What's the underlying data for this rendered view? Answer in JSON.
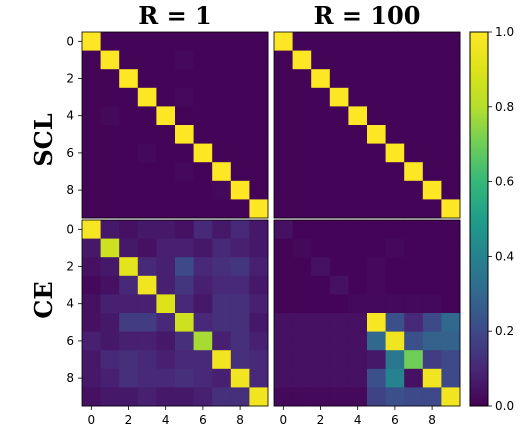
{
  "chart_data": {
    "type": "heatmap",
    "column_titles": [
      "R = 1",
      "R = 100"
    ],
    "row_titles": [
      "SCL",
      "CE"
    ],
    "axis_tick_labels": [
      "0",
      "2",
      "4",
      "6",
      "8"
    ],
    "colorbar": {
      "min": 0.0,
      "max": 1.0,
      "ticks": [
        0.0,
        0.2,
        0.4,
        0.6,
        0.8,
        1.0
      ],
      "tick_labels": [
        "0.0",
        "0.2",
        "0.4",
        "0.6",
        "0.8",
        "1.0"
      ],
      "colormap": "viridis"
    },
    "panels": [
      {
        "row": "SCL",
        "column": "R = 1",
        "matrix": [
          [
            1.0,
            0.01,
            0.01,
            0.01,
            0.01,
            0.01,
            0.01,
            0.01,
            0.01,
            0.01
          ],
          [
            0.01,
            1.0,
            0.01,
            0.01,
            0.01,
            0.02,
            0.01,
            0.01,
            0.01,
            0.01
          ],
          [
            0.01,
            0.01,
            1.0,
            0.01,
            0.01,
            0.01,
            0.01,
            0.01,
            0.01,
            0.01
          ],
          [
            0.01,
            0.01,
            0.01,
            1.0,
            0.01,
            0.02,
            0.01,
            0.01,
            0.01,
            0.01
          ],
          [
            0.01,
            0.02,
            0.01,
            0.01,
            1.0,
            0.01,
            0.01,
            0.01,
            0.01,
            0.01
          ],
          [
            0.01,
            0.01,
            0.01,
            0.01,
            0.01,
            1.0,
            0.01,
            0.01,
            0.01,
            0.01
          ],
          [
            0.01,
            0.01,
            0.01,
            0.02,
            0.01,
            0.01,
            1.0,
            0.01,
            0.01,
            0.01
          ],
          [
            0.01,
            0.01,
            0.01,
            0.01,
            0.01,
            0.02,
            0.01,
            1.0,
            0.01,
            0.01
          ],
          [
            0.01,
            0.01,
            0.01,
            0.01,
            0.01,
            0.01,
            0.01,
            0.02,
            1.0,
            0.01
          ],
          [
            0.01,
            0.01,
            0.01,
            0.01,
            0.01,
            0.01,
            0.01,
            0.01,
            0.01,
            1.0
          ]
        ]
      },
      {
        "row": "SCL",
        "column": "R = 100",
        "matrix": [
          [
            1.0,
            0.01,
            0.01,
            0.01,
            0.01,
            0.01,
            0.01,
            0.01,
            0.01,
            0.01
          ],
          [
            0.01,
            1.0,
            0.01,
            0.01,
            0.01,
            0.01,
            0.01,
            0.01,
            0.01,
            0.01
          ],
          [
            0.01,
            0.01,
            1.0,
            0.01,
            0.01,
            0.01,
            0.01,
            0.01,
            0.01,
            0.01
          ],
          [
            0.01,
            0.01,
            0.01,
            1.0,
            0.01,
            0.01,
            0.01,
            0.01,
            0.01,
            0.01
          ],
          [
            0.01,
            0.01,
            0.01,
            0.01,
            1.0,
            0.01,
            0.01,
            0.01,
            0.01,
            0.01
          ],
          [
            0.01,
            0.01,
            0.01,
            0.01,
            0.01,
            1.0,
            0.01,
            0.01,
            0.01,
            0.01
          ],
          [
            0.01,
            0.01,
            0.01,
            0.01,
            0.01,
            0.01,
            1.0,
            0.01,
            0.01,
            0.01
          ],
          [
            0.01,
            0.01,
            0.01,
            0.01,
            0.01,
            0.01,
            0.01,
            1.0,
            0.01,
            0.01
          ],
          [
            0.01,
            0.01,
            0.01,
            0.01,
            0.01,
            0.01,
            0.01,
            0.01,
            1.0,
            0.01
          ],
          [
            0.01,
            0.01,
            0.01,
            0.01,
            0.01,
            0.01,
            0.01,
            0.01,
            0.01,
            1.0
          ]
        ]
      },
      {
        "row": "CE",
        "column": "R = 1",
        "matrix": [
          [
            0.98,
            0.06,
            0.04,
            0.06,
            0.06,
            0.04,
            0.1,
            0.06,
            0.1,
            0.06
          ],
          [
            0.06,
            0.86,
            0.06,
            0.04,
            0.08,
            0.08,
            0.06,
            0.1,
            0.08,
            0.06
          ],
          [
            0.04,
            0.06,
            0.92,
            0.1,
            0.08,
            0.2,
            0.1,
            0.12,
            0.14,
            0.08
          ],
          [
            0.02,
            0.04,
            0.1,
            0.96,
            0.08,
            0.14,
            0.08,
            0.1,
            0.1,
            0.06
          ],
          [
            0.04,
            0.08,
            0.08,
            0.08,
            0.9,
            0.1,
            0.06,
            0.12,
            0.12,
            0.08
          ],
          [
            0.04,
            0.06,
            0.16,
            0.16,
            0.1,
            0.86,
            0.1,
            0.12,
            0.12,
            0.06
          ],
          [
            0.08,
            0.06,
            0.08,
            0.08,
            0.06,
            0.12,
            0.78,
            0.08,
            0.12,
            0.08
          ],
          [
            0.06,
            0.1,
            0.12,
            0.1,
            0.08,
            0.1,
            0.1,
            0.96,
            0.12,
            0.1
          ],
          [
            0.06,
            0.08,
            0.12,
            0.1,
            0.1,
            0.12,
            0.1,
            0.08,
            0.96,
            0.1
          ],
          [
            0.04,
            0.06,
            0.06,
            0.08,
            0.06,
            0.06,
            0.08,
            0.12,
            0.12,
            0.96
          ]
        ]
      },
      {
        "row": "CE",
        "column": "R = 100",
        "matrix": [
          [
            0.04,
            0.01,
            0.01,
            0.01,
            0.01,
            0.01,
            0.01,
            0.01,
            0.01,
            0.01
          ],
          [
            0.01,
            0.02,
            0.01,
            0.01,
            0.01,
            0.01,
            0.02,
            0.01,
            0.01,
            0.01
          ],
          [
            0.01,
            0.01,
            0.04,
            0.01,
            0.01,
            0.02,
            0.01,
            0.01,
            0.01,
            0.01
          ],
          [
            0.01,
            0.01,
            0.01,
            0.04,
            0.01,
            0.02,
            0.01,
            0.01,
            0.01,
            0.01
          ],
          [
            0.01,
            0.01,
            0.01,
            0.01,
            0.02,
            0.02,
            0.02,
            0.02,
            0.02,
            0.01
          ],
          [
            0.04,
            0.04,
            0.04,
            0.04,
            0.04,
            0.98,
            0.22,
            0.1,
            0.2,
            0.3
          ],
          [
            0.04,
            0.04,
            0.04,
            0.04,
            0.04,
            0.3,
            0.96,
            0.22,
            0.28,
            0.28
          ],
          [
            0.04,
            0.04,
            0.04,
            0.04,
            0.04,
            0.06,
            0.36,
            0.7,
            0.16,
            0.2
          ],
          [
            0.04,
            0.04,
            0.04,
            0.04,
            0.04,
            0.22,
            0.4,
            0.04,
            0.96,
            0.2
          ],
          [
            0.02,
            0.02,
            0.02,
            0.02,
            0.02,
            0.18,
            0.22,
            0.2,
            0.2,
            0.96
          ]
        ]
      }
    ]
  }
}
